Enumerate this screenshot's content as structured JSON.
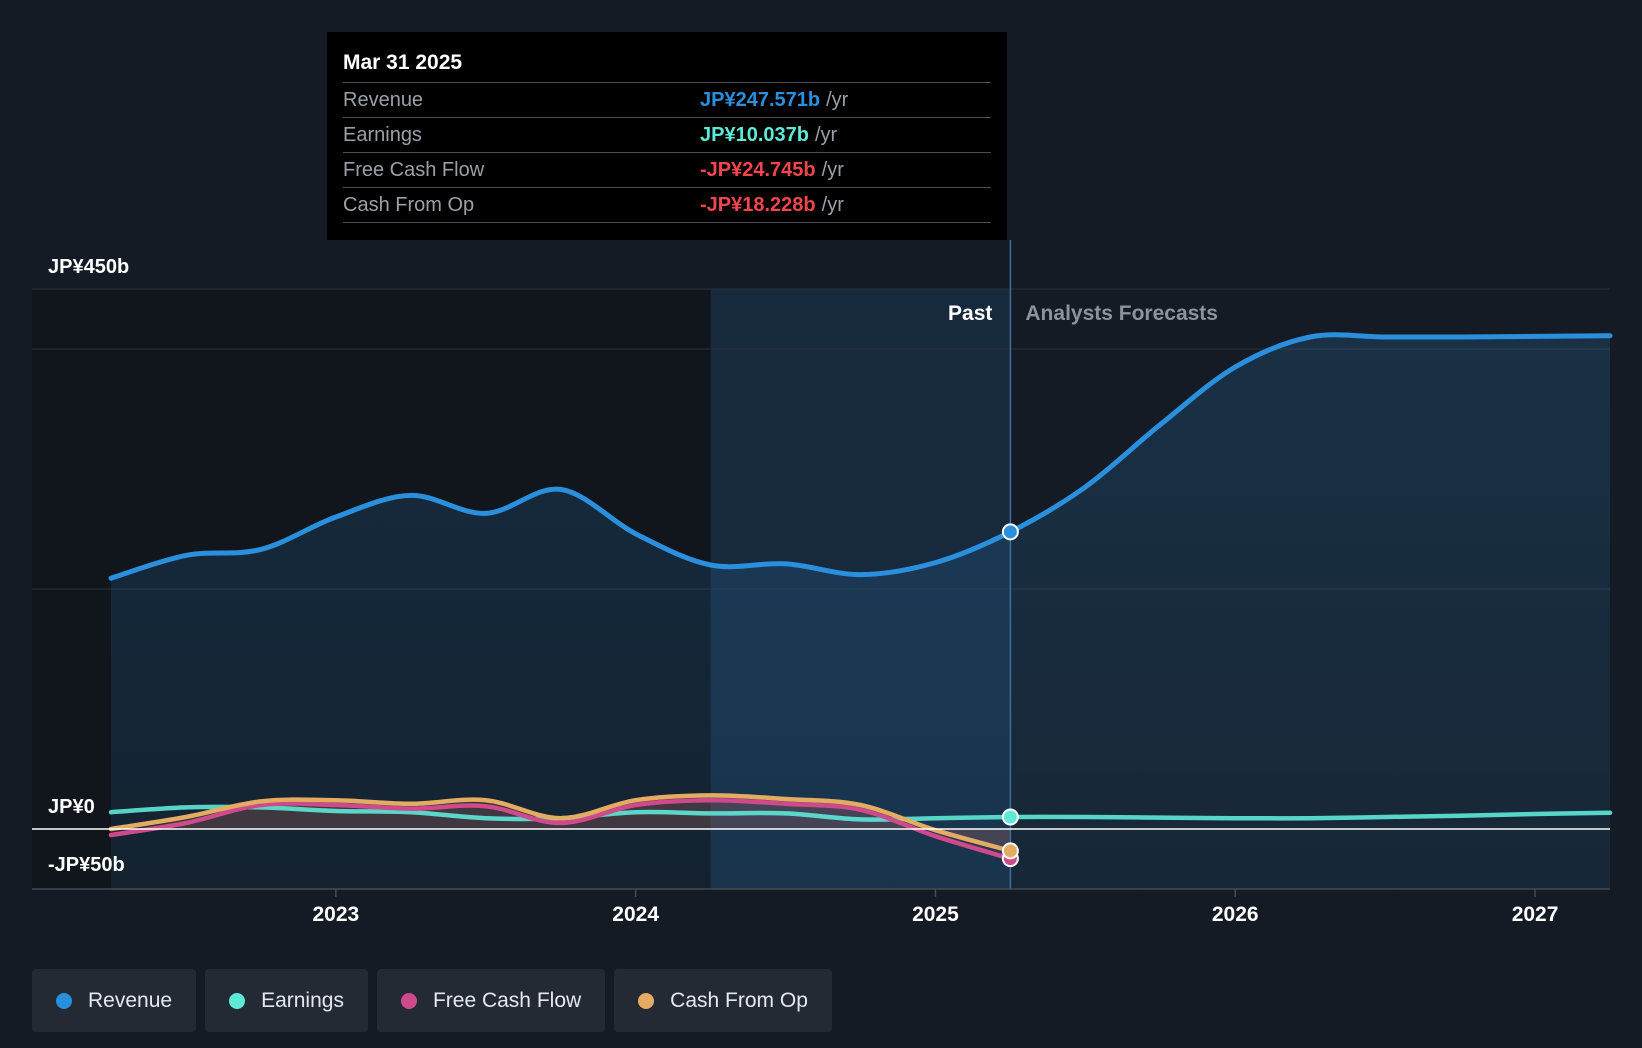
{
  "tooltip": {
    "date": "Mar 31 2025",
    "rows": [
      {
        "label": "Revenue",
        "value": "JP¥247.571b",
        "unit": "/yr",
        "color": "#2a90dd"
      },
      {
        "label": "Earnings",
        "value": "JP¥10.037b",
        "unit": "/yr",
        "color": "#5ee8d6"
      },
      {
        "label": "Free Cash Flow",
        "value": "-JP¥24.745b",
        "unit": "/yr",
        "color": "#f0454e"
      },
      {
        "label": "Cash From Op",
        "value": "-JP¥18.228b",
        "unit": "/yr",
        "color": "#f0454e"
      }
    ]
  },
  "legend": [
    {
      "label": "Revenue",
      "color": "#2a90dd"
    },
    {
      "label": "Earnings",
      "color": "#5ee8d6"
    },
    {
      "label": "Free Cash Flow",
      "color": "#cf4a8a"
    },
    {
      "label": "Cash From Op",
      "color": "#e3ac62"
    }
  ],
  "chart_data": {
    "type": "line",
    "title": "",
    "xlabel": "",
    "ylabel": "",
    "ylim": [
      -50,
      450
    ],
    "xlim": [
      2022.2,
      2027.25
    ],
    "x_ticks": [
      2023,
      2024,
      2025,
      2026,
      2027
    ],
    "x_tick_labels": [
      "2023",
      "2024",
      "2025",
      "2026",
      "2027"
    ],
    "y_tick_labels": [
      {
        "value": 450,
        "label": "JP¥450b"
      },
      {
        "value": 0,
        "label": "JP¥0"
      },
      {
        "value": -50,
        "label": "-JP¥50b"
      }
    ],
    "past_start": 2024.25,
    "divider": 2025.25,
    "past_label": "Past",
    "forecast_label": "Analysts Forecasts",
    "series": [
      {
        "name": "Revenue",
        "color": "#2a90dd",
        "x": [
          2022.25,
          2022.5,
          2022.75,
          2023.0,
          2023.25,
          2023.5,
          2023.75,
          2024.0,
          2024.25,
          2024.5,
          2024.75,
          2025.0,
          2025.25,
          2025.5,
          2025.75,
          2026.0,
          2026.25,
          2026.5,
          2026.75,
          2027.0,
          2027.25
        ],
        "y": [
          209,
          228,
          233,
          260,
          278,
          263,
          283,
          246,
          220,
          221,
          212,
          222,
          247.6,
          285,
          337,
          385,
          410,
          410,
          410,
          410.5,
          411
        ]
      },
      {
        "name": "Earnings",
        "color": "#5ee8d6",
        "x": [
          2022.25,
          2022.5,
          2022.75,
          2023.0,
          2023.25,
          2023.5,
          2023.75,
          2024.0,
          2024.25,
          2024.5,
          2024.75,
          2025.0,
          2025.25,
          2025.5,
          2025.75,
          2026.0,
          2026.25,
          2026.5,
          2026.75,
          2027.0,
          2027.25
        ],
        "y": [
          14,
          18,
          18,
          15,
          14,
          9,
          9,
          14,
          13,
          13,
          8,
          9,
          10.0,
          10,
          9.5,
          9,
          9,
          10,
          11,
          12.5,
          13.5
        ]
      },
      {
        "name": "Free Cash Flow",
        "color": "#cf4a8a",
        "x": [
          2022.25,
          2022.5,
          2022.75,
          2023.0,
          2023.25,
          2023.5,
          2023.75,
          2024.0,
          2024.25,
          2024.5,
          2024.75,
          2025.0,
          2025.25
        ],
        "y": [
          -5,
          5,
          20,
          20,
          17,
          19,
          5,
          20,
          24,
          21,
          16,
          -6,
          -24.7
        ]
      },
      {
        "name": "Cash From Op",
        "color": "#e3ac62",
        "x": [
          2022.25,
          2022.5,
          2022.75,
          2023.0,
          2023.25,
          2023.5,
          2023.75,
          2024.0,
          2024.25,
          2024.5,
          2024.75,
          2025.0,
          2025.25
        ],
        "y": [
          0,
          10,
          23,
          24,
          21,
          24,
          9,
          24,
          28,
          25,
          20,
          -1,
          -18.2
        ]
      }
    ]
  }
}
